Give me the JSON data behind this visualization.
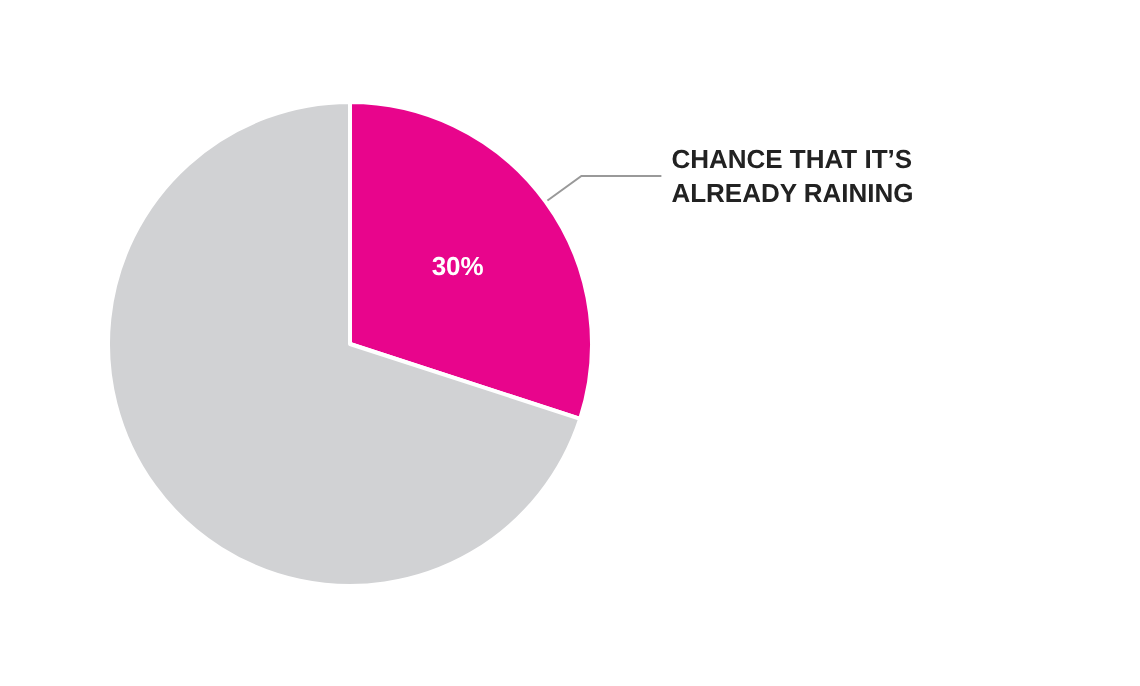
{
  "chart_data": {
    "type": "pie",
    "categories": [
      "CHANCE THAT IT’S ALREADY RAINING",
      null
    ],
    "values": [
      30,
      70
    ],
    "colors": [
      "#e8058c",
      "#d1d2d4"
    ],
    "value_labels": [
      "30%",
      null
    ],
    "legend": false
  }
}
